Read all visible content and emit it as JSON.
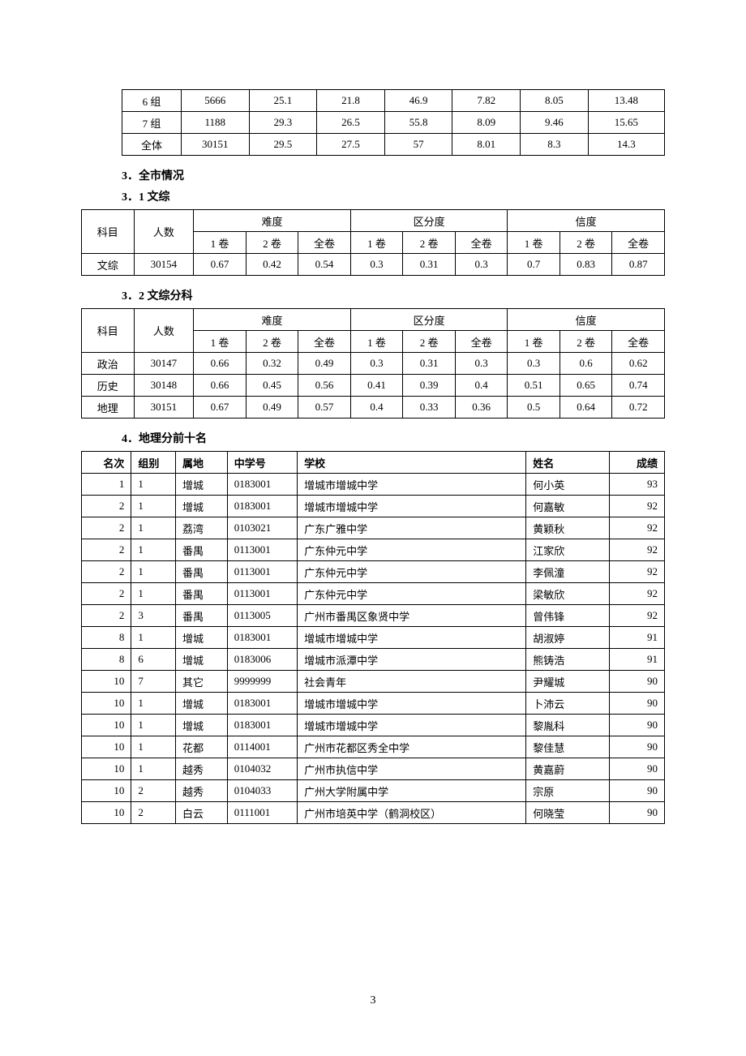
{
  "table1": {
    "columns_count": 8,
    "rows": [
      [
        "6 组",
        "5666",
        "25.1",
        "21.8",
        "46.9",
        "7.82",
        "8.05",
        "13.48"
      ],
      [
        "7 组",
        "1188",
        "29.3",
        "26.5",
        "55.8",
        "8.09",
        "9.46",
        "15.65"
      ],
      [
        "全体",
        "30151",
        "29.5",
        "27.5",
        "57",
        "8.01",
        "8.3",
        "14.3"
      ]
    ],
    "col_widths": [
      "68px",
      "78px",
      "78px",
      "78px",
      "78px",
      "78px",
      "78px",
      "88px"
    ]
  },
  "heading3": "3．全市情况",
  "heading3_1": "3．1 文综",
  "table3_1": {
    "header_row1": [
      "科目",
      "人数",
      "难度",
      "区分度",
      "信度"
    ],
    "header_row1_spans": [
      1,
      1,
      3,
      3,
      3
    ],
    "header_row2": [
      "1 卷",
      "2 卷",
      "全卷",
      "1 卷",
      "2 卷",
      "全卷",
      "1 卷",
      "2 卷",
      "全卷"
    ],
    "rows": [
      [
        "文综",
        "30154",
        "0.67",
        "0.42",
        "0.54",
        "0.3",
        "0.31",
        "0.3",
        "0.7",
        "0.83",
        "0.87"
      ]
    ],
    "col_widths": [
      "56px",
      "64px",
      "56px",
      "56px",
      "56px",
      "56px",
      "56px",
      "56px",
      "56px",
      "56px",
      "56px"
    ]
  },
  "heading3_2": "3．2 文综分科",
  "table3_2": {
    "header_row1": [
      "科目",
      "人数",
      "难度",
      "区分度",
      "信度"
    ],
    "header_row1_spans": [
      1,
      1,
      3,
      3,
      3
    ],
    "header_row2": [
      "1 卷",
      "2 卷",
      "全卷",
      "1 卷",
      "2 卷",
      "全卷",
      "1 卷",
      "2 卷",
      "全卷"
    ],
    "rows": [
      [
        "政治",
        "30147",
        "0.66",
        "0.32",
        "0.49",
        "0.3",
        "0.31",
        "0.3",
        "0.3",
        "0.6",
        "0.62"
      ],
      [
        "历史",
        "30148",
        "0.66",
        "0.45",
        "0.56",
        "0.41",
        "0.39",
        "0.4",
        "0.51",
        "0.65",
        "0.74"
      ],
      [
        "地理",
        "30151",
        "0.67",
        "0.49",
        "0.57",
        "0.4",
        "0.33",
        "0.36",
        "0.5",
        "0.64",
        "0.72"
      ]
    ],
    "col_widths": [
      "56px",
      "64px",
      "56px",
      "56px",
      "56px",
      "56px",
      "56px",
      "56px",
      "56px",
      "56px",
      "56px"
    ]
  },
  "heading4": "4．地理分前十名",
  "table4": {
    "columns": [
      "名次",
      "组别",
      "属地",
      "中学号",
      "学校",
      "姓名",
      "成绩"
    ],
    "col_widths": [
      "54px",
      "48px",
      "56px",
      "76px",
      "248px",
      "90px",
      "60px"
    ],
    "col_align": [
      "r",
      "l",
      "l",
      "l",
      "l",
      "l",
      "r"
    ],
    "rows": [
      [
        "1",
        "1",
        "增城",
        "0183001",
        "增城市增城中学",
        "何小英",
        "93"
      ],
      [
        "2",
        "1",
        "增城",
        "0183001",
        "增城市增城中学",
        "何嘉敏",
        "92"
      ],
      [
        "2",
        "1",
        "荔湾",
        "0103021",
        "广东广雅中学",
        "黄颖秋",
        "92"
      ],
      [
        "2",
        "1",
        "番禺",
        "0113001",
        "广东仲元中学",
        "江家欣",
        "92"
      ],
      [
        "2",
        "1",
        "番禺",
        "0113001",
        "广东仲元中学",
        "李佩潼",
        "92"
      ],
      [
        "2",
        "1",
        "番禺",
        "0113001",
        "广东仲元中学",
        "梁敏欣",
        "92"
      ],
      [
        "2",
        "3",
        "番禺",
        "0113005",
        "广州市番禺区象贤中学",
        "曾伟锋",
        "92"
      ],
      [
        "8",
        "1",
        "增城",
        "0183001",
        "增城市增城中学",
        "胡淑婷",
        "91"
      ],
      [
        "8",
        "6",
        "增城",
        "0183006",
        "增城市派潭中学",
        "熊铸浩",
        "91"
      ],
      [
        "10",
        "7",
        "其它",
        "9999999",
        "社会青年",
        "尹耀城",
        "90"
      ],
      [
        "10",
        "1",
        "增城",
        "0183001",
        "增城市增城中学",
        "卜沛云",
        "90"
      ],
      [
        "10",
        "1",
        "增城",
        "0183001",
        "增城市增城中学",
        "黎胤科",
        "90"
      ],
      [
        "10",
        "1",
        "花都",
        "0114001",
        "广州市花都区秀全中学",
        "黎佳慧",
        "90"
      ],
      [
        "10",
        "1",
        "越秀",
        "0104032",
        "广州市执信中学",
        "黄嘉蔚",
        "90"
      ],
      [
        "10",
        "2",
        "越秀",
        "0104033",
        "广州大学附属中学",
        "宗原",
        "90"
      ],
      [
        "10",
        "2",
        "白云",
        "0111001",
        "广州市培英中学（鹤洞校区）",
        "何晓莹",
        "90"
      ]
    ]
  },
  "page_number": "3"
}
